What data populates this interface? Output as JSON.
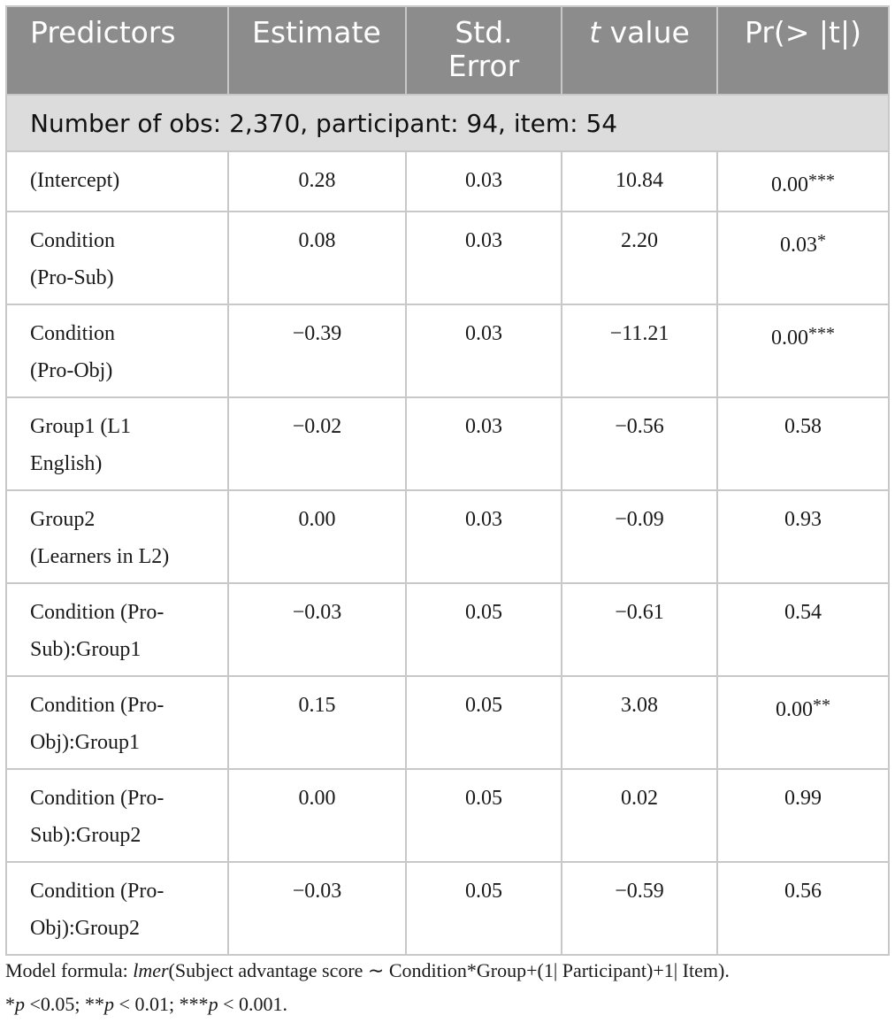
{
  "table": {
    "headers": {
      "predictors": "Predictors",
      "estimate": "Estimate",
      "std_error_line1": "Std.",
      "std_error_line2": "Error",
      "t_italic": "t",
      "t_rest": " value",
      "pr": "Pr(> |t|)"
    },
    "subheader": "Number of obs: 2,370, participant: 94, item: 54",
    "rows": [
      {
        "predictor_line1": "(Intercept)",
        "predictor_line2": "",
        "estimate": "0.28",
        "std_error": "0.03",
        "t_value": "10.84",
        "p_value": "0.00",
        "stars": "***"
      },
      {
        "predictor_line1": "Condition",
        "predictor_line2": "(Pro-Sub)",
        "estimate": "0.08",
        "std_error": "0.03",
        "t_value": "2.20",
        "p_value": "0.03",
        "stars": "*"
      },
      {
        "predictor_line1": "Condition",
        "predictor_line2": "(Pro-Obj)",
        "estimate": "−0.39",
        "std_error": "0.03",
        "t_value": "−11.21",
        "p_value": "0.00",
        "stars": "***"
      },
      {
        "predictor_line1": "Group1 (L1",
        "predictor_line2": "English)",
        "estimate": "−0.02",
        "std_error": "0.03",
        "t_value": "−0.56",
        "p_value": "0.58",
        "stars": ""
      },
      {
        "predictor_line1": "Group2",
        "predictor_line2": "(Learners in L2)",
        "estimate": "0.00",
        "std_error": "0.03",
        "t_value": "−0.09",
        "p_value": "0.93",
        "stars": ""
      },
      {
        "predictor_line1": "Condition (Pro-",
        "predictor_line2": "Sub):Group1",
        "estimate": "−0.03",
        "std_error": "0.05",
        "t_value": "−0.61",
        "p_value": "0.54",
        "stars": ""
      },
      {
        "predictor_line1": "Condition (Pro-",
        "predictor_line2": "Obj):Group1",
        "estimate": "0.15",
        "std_error": "0.05",
        "t_value": "3.08",
        "p_value": "0.00",
        "stars": "**"
      },
      {
        "predictor_line1": "Condition (Pro-",
        "predictor_line2": "Sub):Group2",
        "estimate": "0.00",
        "std_error": "0.05",
        "t_value": "0.02",
        "p_value": "0.99",
        "stars": ""
      },
      {
        "predictor_line1": "Condition (Pro-",
        "predictor_line2": "Obj):Group2",
        "estimate": "−0.03",
        "std_error": "0.05",
        "t_value": "−0.59",
        "p_value": "0.56",
        "stars": ""
      }
    ]
  },
  "footnote": {
    "line1_prefix": "Model formula: ",
    "line1_func": "lmer",
    "line1_rest": "(Subject advantage score ∼ Condition*Group+(1| Participant)+1| Item).",
    "sig_star1": "*",
    "sig_p1": "p",
    "sig_rest1": " <0.05; ",
    "sig_star2": "**",
    "sig_p2": "p",
    "sig_rest2": " < 0.01; ",
    "sig_star3": "***",
    "sig_p3": "p",
    "sig_rest3": " < 0.001."
  }
}
